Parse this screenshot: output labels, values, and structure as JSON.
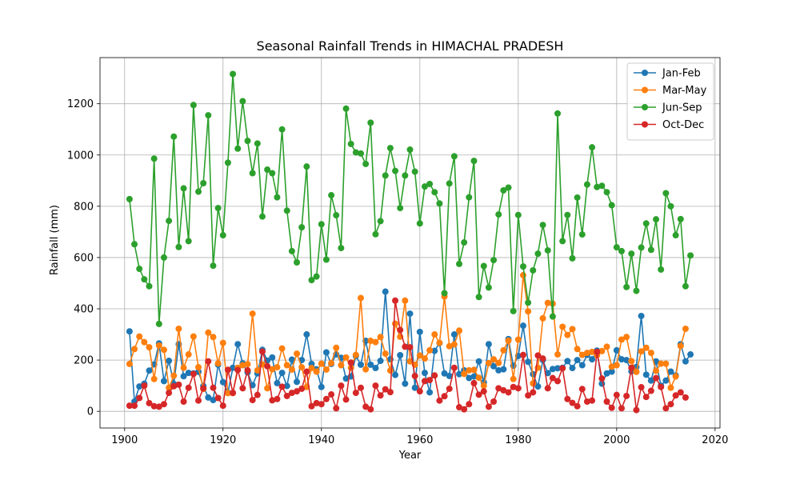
{
  "chart_data": {
    "type": "line",
    "title": "Seasonal Rainfall Trends in HIMACHAL PRADESH",
    "xlabel": "Year",
    "ylabel": "Rainfall (mm)",
    "xlim": [
      1895,
      2021
    ],
    "ylim": [
      -65,
      1380
    ],
    "x_ticks": [
      1900,
      1920,
      1940,
      1960,
      1980,
      2000,
      2020
    ],
    "y_ticks": [
      0,
      200,
      400,
      600,
      800,
      1000,
      1200
    ],
    "grid": true,
    "legend_position": "upper right",
    "x_start": 1901,
    "series": [
      {
        "name": "Jan-Feb",
        "color": "#1f77b4",
        "values": [
          312,
          38,
          97,
          108,
          159,
          183,
          265,
          118,
          197,
          107,
          262,
          137,
          150,
          148,
          154,
          99,
          54,
          44,
          182,
          114,
          73,
          170,
          262,
          187,
          152,
          102,
          148,
          240,
          198,
          210,
          110,
          150,
          99,
          202,
          115,
          200,
          300,
          185,
          164,
          95,
          230,
          185,
          222,
          209,
          128,
          136,
          216,
          182,
          275,
          182,
          169,
          197,
          467,
          203,
          142,
          219,
          108,
          381,
          92,
          310,
          150,
          74,
          236,
          266,
          148,
          138,
          300,
          145,
          160,
          130,
          136,
          195,
          113,
          262,
          176,
          160,
          164,
          282,
          178,
          216,
          334,
          193,
          145,
          97,
          200,
          149,
          165,
          168,
          170,
          196,
          169,
          200,
          180,
          220,
          203,
          237,
          108,
          148,
          155,
          238,
          203,
          200,
          156,
          173,
          372,
          143,
          120,
          195,
          100,
          120,
          155,
          140,
          262,
          195,
          222
        ]
      },
      {
        "name": "Mar-May",
        "color": "#ff7f0e",
        "values": [
          185,
          243,
          292,
          270,
          250,
          126,
          257,
          240,
          92,
          139,
          322,
          170,
          222,
          292,
          172,
          87,
          307,
          290,
          187,
          267,
          71,
          71,
          170,
          180,
          184,
          381,
          160,
          183,
          90,
          164,
          172,
          245,
          180,
          163,
          225,
          172,
          95,
          169,
          155,
          186,
          163,
          188,
          248,
          180,
          210,
          170,
          220,
          442,
          164,
          275,
          270,
          290,
          225,
          159,
          342,
          291,
          432,
          195,
          182,
          218,
          206,
          238,
          300,
          267,
          448,
          254,
          261,
          315,
          146,
          160,
          162,
          131,
          100,
          188,
          203,
          189,
          238,
          276,
          126,
          280,
          531,
          390,
          109,
          170,
          363,
          423,
          420,
          222,
          330,
          298,
          321,
          243,
          220,
          228,
          232,
          219,
          235,
          252,
          174,
          180,
          280,
          290,
          196,
          154,
          234,
          248,
          228,
          158,
          186,
          186,
          92,
          136,
          255,
          322,
          null
        ]
      },
      {
        "name": "Jun-Sep",
        "color": "#2ca02c",
        "values": [
          828,
          652,
          556,
          515,
          488,
          986,
          341,
          600,
          743,
          1072,
          641,
          870,
          664,
          1195,
          857,
          890,
          1155,
          568,
          793,
          687,
          970,
          1316,
          1025,
          1210,
          1055,
          929,
          1045,
          760,
          943,
          929,
          835,
          1100,
          783,
          625,
          581,
          718,
          955,
          512,
          526,
          730,
          592,
          843,
          765,
          637,
          1181,
          1043,
          1010,
          1006,
          965,
          1126,
          691,
          742,
          920,
          1027,
          938,
          793,
          920,
          1021,
          935,
          733,
          877,
          887,
          855,
          811,
          461,
          889,
          995,
          575,
          659,
          835,
          977,
          446,
          567,
          483,
          590,
          768,
          862,
          873,
          391,
          766,
          565,
          424,
          550,
          615,
          727,
          628,
          370,
          1162,
          664,
          766,
          597,
          834,
          690,
          885,
          1030,
          875,
          880,
          855,
          804,
          640,
          625,
          485,
          615,
          470,
          639,
          733,
          630,
          749,
          553,
          851,
          800,
          687,
          750,
          488,
          608
        ]
      },
      {
        "name": "Oct-Dec",
        "color": "#d62728",
        "values": [
          22,
          22,
          52,
          100,
          32,
          20,
          18,
          28,
          72,
          98,
          104,
          38,
          92,
          146,
          42,
          90,
          195,
          92,
          52,
          22,
          162,
          72,
          161,
          90,
          160,
          44,
          64,
          233,
          176,
          43,
          48,
          96,
          60,
          72,
          78,
          88,
          155,
          20,
          32,
          28,
          48,
          66,
          12,
          100,
          46,
          190,
          72,
          92,
          18,
          8,
          100,
          62,
          86,
          75,
          432,
          317,
          252,
          250,
          138,
          78,
          118,
          122,
          140,
          42,
          59,
          88,
          170,
          16,
          8,
          28,
          110,
          65,
          78,
          18,
          38,
          90,
          82,
          74,
          95,
          90,
          220,
          62,
          74,
          218,
          206,
          90,
          130,
          118,
          168,
          48,
          33,
          20,
          87,
          38,
          42,
          232,
          128,
          38,
          14,
          64,
          12,
          60,
          170,
          5,
          94,
          56,
          80,
          130,
          95,
          12,
          28,
          62,
          74,
          54,
          null
        ]
      }
    ]
  }
}
